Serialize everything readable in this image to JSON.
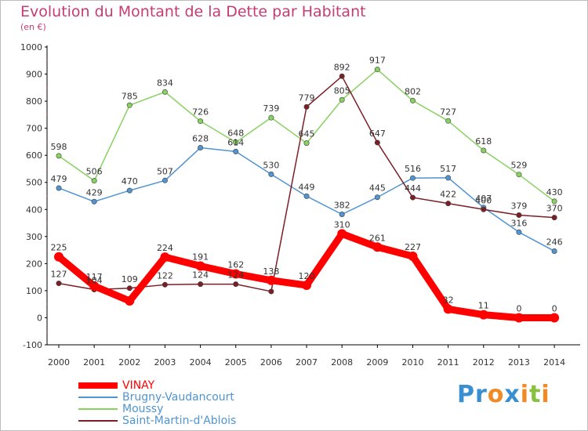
{
  "title": "Evolution du Montant de la Dette par Habitant",
  "subtitle": "(en €)",
  "logo_text": "Proxiti",
  "chart_data": {
    "type": "line",
    "title": "Evolution du Montant de la Dette par Habitant",
    "subtitle": "(en €)",
    "xlabel": "",
    "ylabel": "",
    "x": [
      "2000",
      "2001",
      "2002",
      "2003",
      "2004",
      "2005",
      "2006",
      "2007",
      "2008",
      "2009",
      "2010",
      "2011",
      "2012",
      "2013",
      "2014"
    ],
    "ylim": [
      -100,
      1000
    ],
    "yticks": [
      -100,
      0,
      100,
      200,
      300,
      400,
      500,
      600,
      700,
      800,
      900,
      1000
    ],
    "grid": false,
    "legend_position": "bottom-left",
    "series": [
      {
        "name": "VINAY",
        "color": "#ff0000",
        "values": [
          225,
          117,
          62,
          224,
          191,
          162,
          138,
          120,
          310,
          261,
          227,
          32,
          11,
          0,
          0
        ],
        "labels": [
          "225",
          "117",
          "",
          "224",
          "191",
          "162",
          "138",
          "120",
          "310",
          "261",
          "227",
          "32",
          "11",
          "0",
          "0"
        ]
      },
      {
        "name": "Brugny-Vaudancourt",
        "color": "#5094d2",
        "values": [
          479,
          429,
          470,
          507,
          628,
          614,
          530,
          449,
          382,
          445,
          516,
          517,
          407,
          316,
          246
        ],
        "labels": [
          "479",
          "429",
          "470",
          "507",
          "628",
          "614",
          "530",
          "449",
          "382",
          "445",
          "516",
          "517",
          "407",
          "316",
          "246"
        ]
      },
      {
        "name": "Moussy",
        "color": "#88d160",
        "values": [
          598,
          506,
          785,
          834,
          726,
          648,
          739,
          645,
          805,
          917,
          802,
          727,
          618,
          529,
          430
        ],
        "labels": [
          "598",
          "506",
          "785",
          "834",
          "726",
          "648",
          "739",
          "645",
          "805",
          "917",
          "802",
          "727",
          "618",
          "529",
          "430"
        ]
      },
      {
        "name": "Saint-Martin-d'Ablois",
        "color": "#7b1e26",
        "values": [
          127,
          104,
          109,
          122,
          124,
          124,
          97,
          779,
          892,
          647,
          444,
          422,
          400,
          379,
          370
        ],
        "labels": [
          "127",
          "104",
          "109",
          "122",
          "124",
          "124",
          "",
          "779",
          "892",
          "647",
          "444",
          "422",
          "400",
          "379",
          "370"
        ]
      }
    ]
  }
}
